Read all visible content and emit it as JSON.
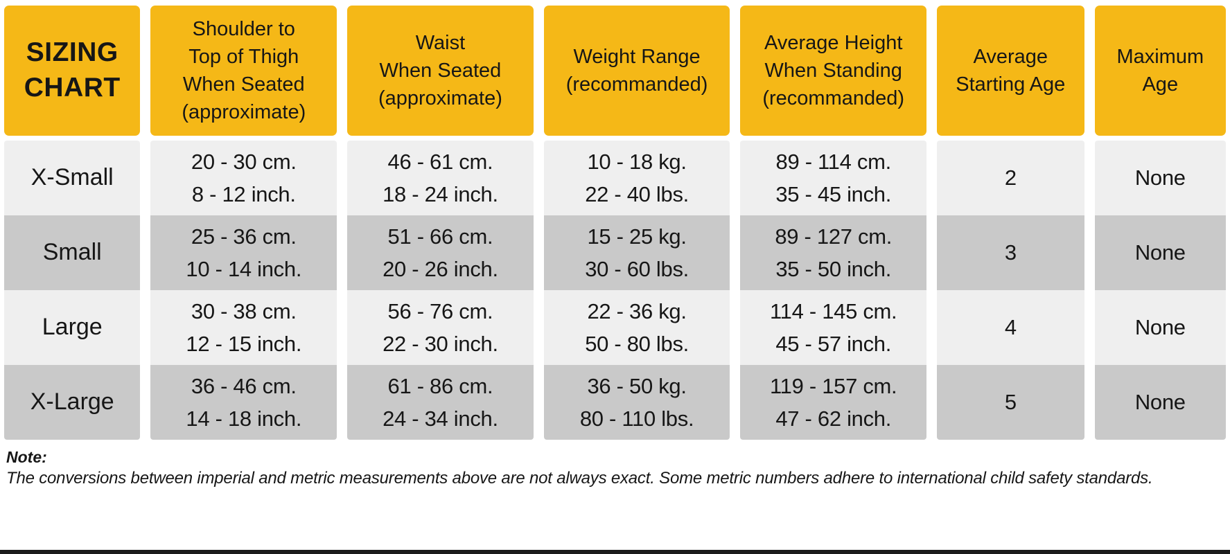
{
  "colors": {
    "yellow": "#F5B817",
    "row-light": "#EFEFEF",
    "row-dark": "#C9C9C9",
    "ink": "#161616"
  },
  "table": {
    "headers": [
      "SIZING\nCHART",
      "Shoulder to\nTop of Thigh\nWhen Seated\n(approximate)",
      "Waist\nWhen Seated\n(approximate)",
      "Weight Range\n(recommanded)",
      "Average Height\nWhen Standing\n(recommanded)",
      "Average\nStarting Age",
      "Maximum\nAge"
    ],
    "rows": [
      {
        "label": "X-Small",
        "cells": [
          "20 - 30 cm.\n8 - 12 inch.",
          "46 - 61 cm.\n18 - 24 inch.",
          "10 - 18 kg.\n22 - 40 lbs.",
          "89 - 114 cm.\n35 - 45 inch.",
          "2",
          "None"
        ]
      },
      {
        "label": "Small",
        "cells": [
          "25 - 36 cm.\n10 - 14 inch.",
          "51 - 66 cm.\n20 - 26 inch.",
          "15 - 25 kg.\n30 - 60 lbs.",
          "89 - 127 cm.\n35 - 50 inch.",
          "3",
          "None"
        ]
      },
      {
        "label": "Large",
        "cells": [
          "30 - 38 cm.\n12 - 15 inch.",
          "56 - 76 cm.\n22 - 30 inch.",
          "22 - 36 kg.\n50 - 80 lbs.",
          "114 - 145 cm.\n45 - 57 inch.",
          "4",
          "None"
        ]
      },
      {
        "label": "X-Large",
        "cells": [
          "36 - 46 cm.\n14 - 18 inch.",
          "61 - 86 cm.\n24 - 34 inch.",
          "36 - 50 kg.\n80 - 110 lbs.",
          "119 - 157 cm.\n47 - 62 inch.",
          "5",
          "None"
        ]
      }
    ]
  },
  "note": {
    "label": "Note:",
    "text": "The conversions between imperial and metric measurements above are not always exact. Some metric numbers adhere to international child safety standards."
  },
  "chart_data": {
    "type": "table",
    "title": "SIZING CHART",
    "columns": [
      "Size",
      "Shoulder to Top of Thigh When Seated (approximate)",
      "Waist When Seated (approximate)",
      "Weight Range (recommanded)",
      "Average Height When Standing (recommanded)",
      "Average Starting Age",
      "Maximum Age"
    ],
    "rows": [
      [
        "X-Small",
        "20 - 30 cm. / 8 - 12 inch.",
        "46 - 61 cm. / 18 - 24 inch.",
        "10 - 18 kg. / 22 - 40 lbs.",
        "89 - 114 cm. / 35 - 45 inch.",
        "2",
        "None"
      ],
      [
        "Small",
        "25 - 36 cm. / 10 - 14 inch.",
        "51 - 66 cm. / 20 - 26 inch.",
        "15 - 25 kg. / 30 - 60 lbs.",
        "89 - 127 cm. / 35 - 50 inch.",
        "3",
        "None"
      ],
      [
        "Large",
        "30 - 38 cm. / 12 - 15 inch.",
        "56 - 76 cm. / 22 - 30 inch.",
        "22 - 36 kg. / 50 - 80 lbs.",
        "114 - 145 cm. / 45 - 57 inch.",
        "4",
        "None"
      ],
      [
        "X-Large",
        "36 - 46 cm. / 14 - 18 inch.",
        "61 - 86 cm. / 24 - 34 inch.",
        "36 - 50 kg. / 80 - 110 lbs.",
        "119 - 157 cm. / 47 - 62 inch.",
        "5",
        "None"
      ]
    ],
    "note": "The conversions between imperial and metric measurements above are not always exact. Some metric numbers adhere to international child safety standards."
  }
}
